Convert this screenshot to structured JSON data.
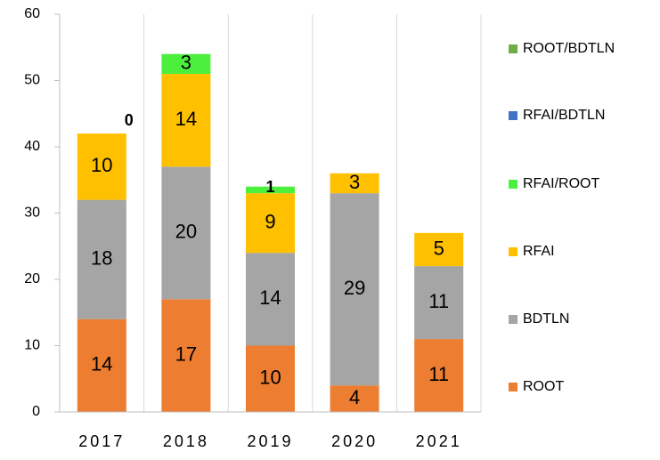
{
  "chart_data": {
    "type": "stacked-bar",
    "categories": [
      "2017",
      "2018",
      "2019",
      "2020",
      "2021"
    ],
    "series": [
      {
        "name": "ROOT",
        "color": "#ed7d31",
        "values": [
          14,
          17,
          10,
          4,
          11
        ]
      },
      {
        "name": "BDTLN",
        "color": "#a5a5a5",
        "values": [
          18,
          20,
          14,
          29,
          11
        ]
      },
      {
        "name": "RFAI",
        "color": "#ffc000",
        "values": [
          10,
          14,
          9,
          3,
          5
        ]
      },
      {
        "name": "RFAI/ROOT",
        "color": "#4cf03c",
        "values": [
          0,
          3,
          1,
          null,
          null
        ]
      },
      {
        "name": "RFAI/BDTLN",
        "color": "#4472c4",
        "values": [
          null,
          null,
          null,
          null,
          null
        ]
      },
      {
        "name": "ROOT/BDTLN",
        "color": "#70ad47",
        "values": [
          null,
          null,
          null,
          null,
          null
        ]
      }
    ],
    "ylim": [
      0,
      60
    ],
    "yticks": [
      0,
      10,
      20,
      30,
      40,
      50,
      60
    ],
    "grid": true,
    "legend": "right"
  }
}
